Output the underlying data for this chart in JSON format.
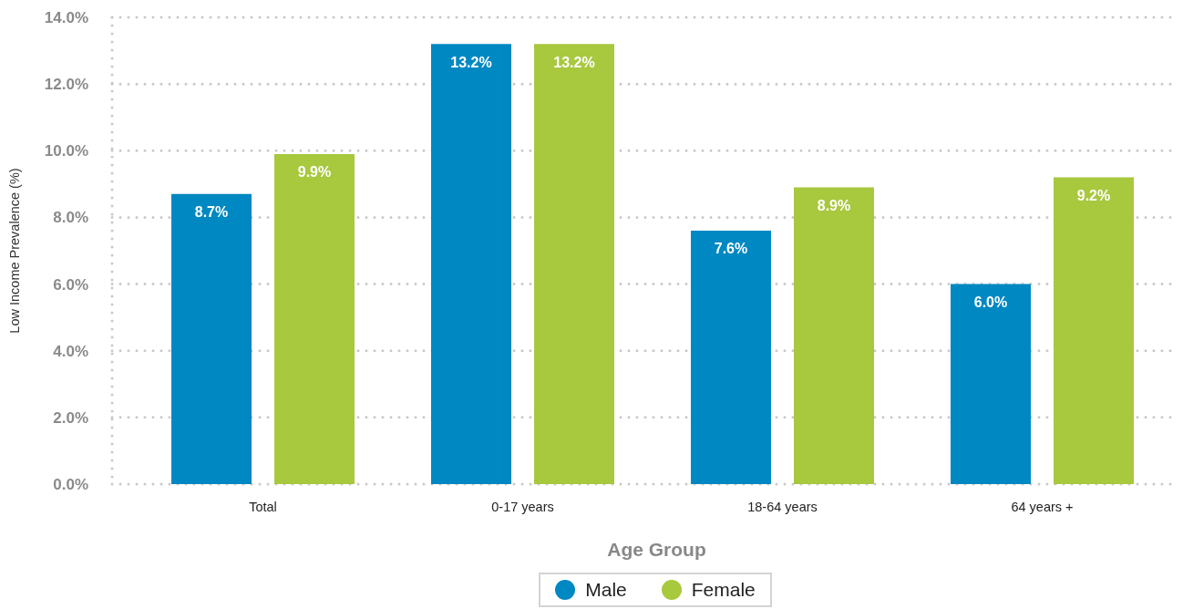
{
  "chart_data": {
    "type": "bar",
    "categories": [
      "Total",
      "0-17 years",
      "18-64 years",
      "64 years +"
    ],
    "series": [
      {
        "name": "Male",
        "color": "#0088c2",
        "values": [
          8.7,
          13.2,
          7.6,
          6.0
        ],
        "value_labels": [
          "8.7%",
          "13.2%",
          "7.6%",
          "6.0%"
        ]
      },
      {
        "name": "Female",
        "color": "#a8c83e",
        "values": [
          9.9,
          13.2,
          8.9,
          9.2
        ],
        "value_labels": [
          "9.9%",
          "13.2%",
          "8.9%",
          "9.2%"
        ]
      }
    ],
    "xlabel": "Age Group",
    "ylabel": "Low Income Prevalence (%)",
    "ylim": [
      0,
      14
    ],
    "yticks": [
      {
        "value": 0,
        "label": "0.0%"
      },
      {
        "value": 2,
        "label": "2.0%"
      },
      {
        "value": 4,
        "label": "4.0%"
      },
      {
        "value": 6,
        "label": "6.0%"
      },
      {
        "value": 8,
        "label": "8.0%"
      },
      {
        "value": 10,
        "label": "10.0%"
      },
      {
        "value": 12,
        "label": "12.0%"
      },
      {
        "value": 14,
        "label": "14.0%"
      }
    ],
    "grid": "y",
    "legend": "bottom"
  }
}
